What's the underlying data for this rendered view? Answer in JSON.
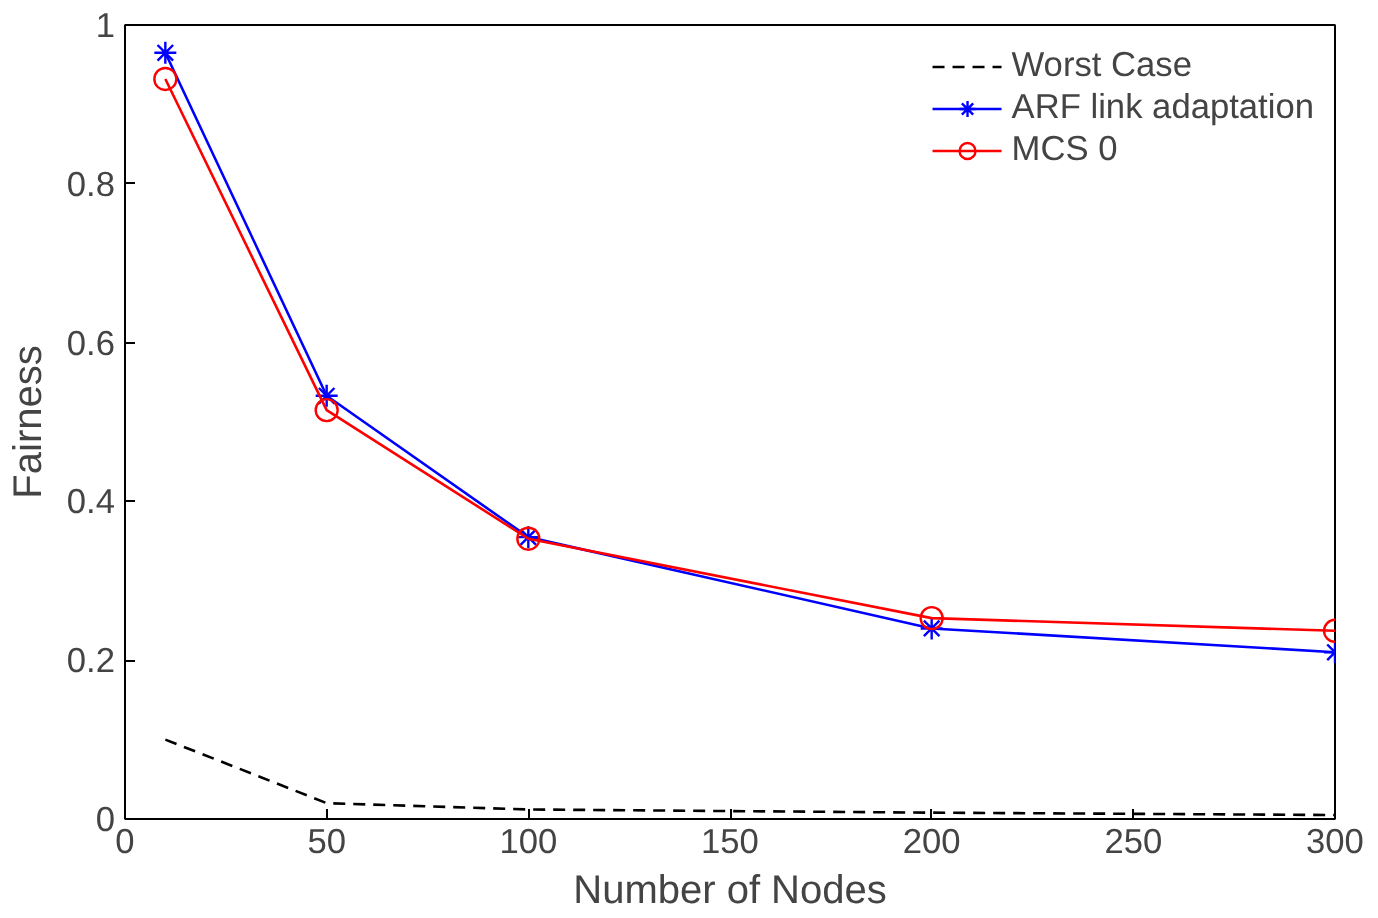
{
  "chart_data": {
    "type": "line",
    "xlabel": "Number of Nodes",
    "ylabel": "Fairness",
    "x": [
      10,
      50,
      100,
      200,
      300
    ],
    "series": [
      {
        "name": "Worst Case",
        "color": "#000000",
        "values": [
          0.1,
          0.02,
          0.012,
          0.008,
          0.005
        ],
        "marker": "none",
        "line_style": "dashed"
      },
      {
        "name": "ARF link adaptation",
        "color": "#0000ff",
        "values": [
          0.965,
          0.533,
          0.355,
          0.24,
          0.21
        ],
        "marker": "cross",
        "line_style": "solid"
      },
      {
        "name": "MCS 0",
        "color": "#ff0000",
        "values": [
          0.932,
          0.515,
          0.353,
          0.253,
          0.237
        ],
        "marker": "circle",
        "line_style": "solid"
      }
    ],
    "xlim": [
      0,
      300
    ],
    "ylim": [
      0,
      1
    ],
    "xticks": [
      0,
      50,
      100,
      150,
      200,
      250,
      300
    ],
    "yticks": [
      0,
      0.2,
      0.4,
      0.6,
      0.8,
      1
    ],
    "grid": false,
    "legend": "top right"
  }
}
